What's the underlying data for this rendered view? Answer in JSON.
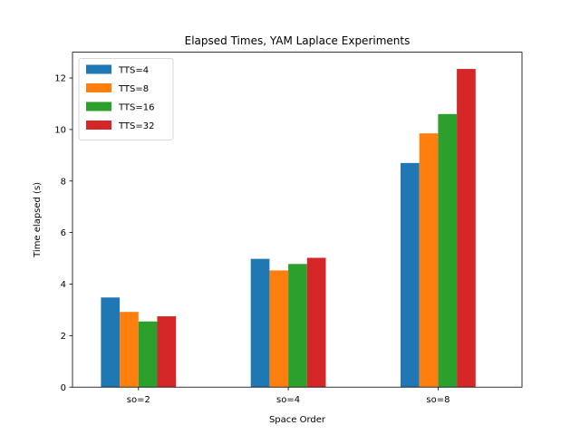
{
  "chart_data": {
    "type": "bar",
    "title": "Elapsed Times, YAM Laplace Experiments",
    "xlabel": "Space Order",
    "ylabel": "Time elapsed (s)",
    "categories": [
      "so=2",
      "so=4",
      "so=8"
    ],
    "ylim": [
      0,
      13
    ],
    "yticks": [
      0,
      2,
      4,
      6,
      8,
      10,
      12
    ],
    "grid": false,
    "legend_position": "top-left",
    "series": [
      {
        "name": "TTS=4",
        "color": "#1f77b4",
        "values": [
          3.48,
          4.98,
          8.7
        ]
      },
      {
        "name": "TTS=8",
        "color": "#ff7f0e",
        "values": [
          2.92,
          4.53,
          9.85
        ]
      },
      {
        "name": "TTS=16",
        "color": "#2ca02c",
        "values": [
          2.55,
          4.78,
          10.6
        ]
      },
      {
        "name": "TTS=32",
        "color": "#d62728",
        "values": [
          2.75,
          5.02,
          12.35
        ]
      }
    ]
  }
}
